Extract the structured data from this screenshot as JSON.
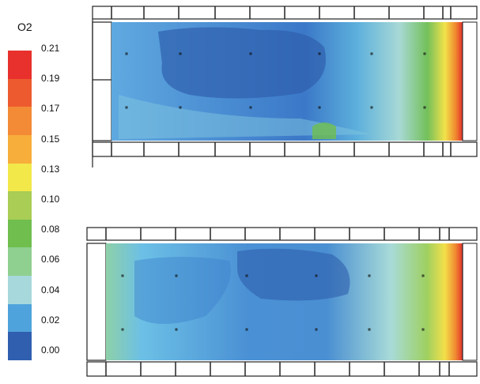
{
  "legend": {
    "title": "O2",
    "ticks": [
      "0.21",
      "0.19",
      "0.17",
      "0.15",
      "0.13",
      "0.10",
      "0.08",
      "0.06",
      "0.04",
      "0.02",
      "0.00"
    ],
    "colors": [
      "#e8302c",
      "#ee5a2f",
      "#f38a36",
      "#f7ae3a",
      "#f3e84a",
      "#a9cd55",
      "#6fbe4e",
      "#8fcf8f",
      "#a6d8dc",
      "#4fa3dc",
      "#2f5fae"
    ]
  },
  "panels": [
    {
      "name": "upper-contour-panel"
    },
    {
      "name": "lower-contour-panel"
    }
  ]
}
